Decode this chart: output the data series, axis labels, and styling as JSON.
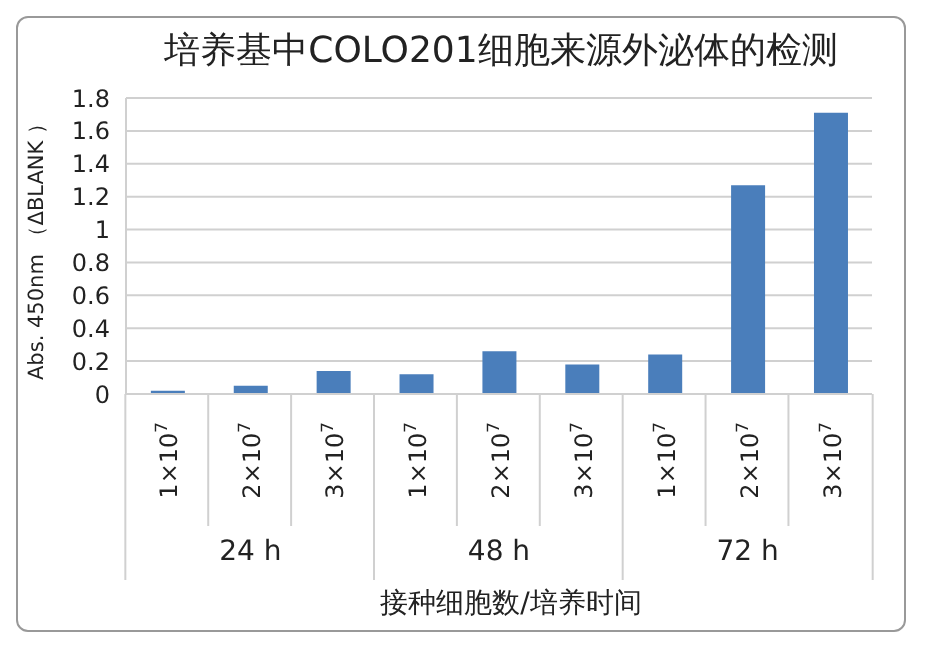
{
  "chart_data": {
    "type": "bar",
    "title": "培养基中COLO201细胞来源外泌体的检测",
    "xlabel": "接种细胞数/培养时间",
    "ylabel": "Abs. 450nm （ΔBLANK ）",
    "categories": [
      "1×10$^{7}$",
      "2×10$^{7}$",
      "3×10$^{7}$",
      "1×10$^{7}$",
      "2×10$^{7}$",
      "3×10$^{7}$",
      "1×10$^{7}$",
      "2×10$^{7}$",
      "3×10$^{7}$"
    ],
    "values": [
      0.02,
      0.05,
      0.14,
      0.12,
      0.26,
      0.18,
      0.24,
      1.27,
      1.71
    ],
    "color": "#4a7ebb",
    "annotations": [
      "24 h",
      "48 h",
      "72 h"
    ],
    "ylim": [
      0,
      1.8
    ],
    "yticks": [
      0,
      0.2,
      0.4,
      0.6,
      0.8,
      1,
      1.2,
      1.4,
      1.6,
      1.8
    ],
    "grid": "y",
    "legend": false
  }
}
